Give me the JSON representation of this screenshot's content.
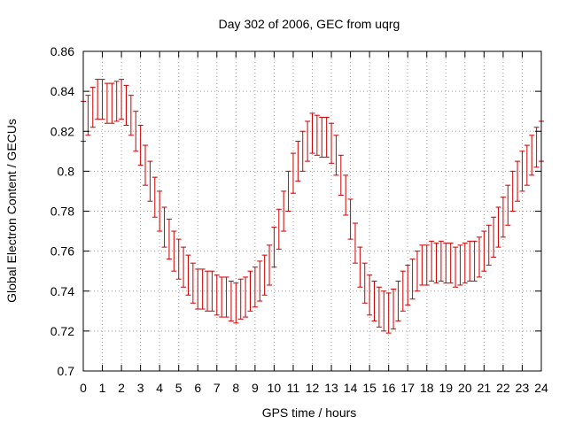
{
  "chart_data": {
    "type": "scatter",
    "title": "Day 302 of 2006, GEC from uqrg",
    "xlabel": "GPS time / hours",
    "ylabel": "Global Electron Content / GECUs",
    "xlim": [
      0,
      24
    ],
    "ylim": [
      0.7,
      0.86
    ],
    "xticks": [
      0,
      1,
      2,
      3,
      4,
      5,
      6,
      7,
      8,
      9,
      10,
      11,
      12,
      13,
      14,
      15,
      16,
      17,
      18,
      19,
      20,
      21,
      22,
      23,
      24
    ],
    "yticks": [
      0.7,
      0.72,
      0.74,
      0.76,
      0.78,
      0.8,
      0.82,
      0.84,
      0.86
    ],
    "ytick_labels": [
      "0.7",
      "0.72",
      "0.74",
      "0.76",
      "0.78",
      "0.8",
      "0.82",
      "0.84",
      "0.86"
    ],
    "grid": true,
    "error_half_width": 0.01,
    "series": [
      {
        "name": "GEC",
        "color": "#cc0000",
        "x": [
          0.0,
          0.25,
          0.5,
          0.75,
          1.0,
          1.25,
          1.5,
          1.75,
          2.0,
          2.25,
          2.5,
          2.75,
          3.0,
          3.25,
          3.5,
          3.75,
          4.0,
          4.25,
          4.5,
          4.75,
          5.0,
          5.25,
          5.5,
          5.75,
          6.0,
          6.25,
          6.5,
          6.75,
          7.0,
          7.25,
          7.5,
          7.75,
          8.0,
          8.25,
          8.5,
          8.75,
          9.0,
          9.25,
          9.5,
          9.75,
          10.0,
          10.25,
          10.5,
          10.75,
          11.0,
          11.25,
          11.5,
          11.75,
          12.0,
          12.25,
          12.5,
          12.75,
          13.0,
          13.25,
          13.5,
          13.75,
          14.0,
          14.25,
          14.5,
          14.75,
          15.0,
          15.25,
          15.5,
          15.75,
          16.0,
          16.25,
          16.5,
          16.75,
          17.0,
          17.25,
          17.5,
          17.75,
          18.0,
          18.25,
          18.5,
          18.75,
          19.0,
          19.25,
          19.5,
          19.75,
          20.0,
          20.25,
          20.5,
          20.75,
          21.0,
          21.25,
          21.5,
          21.75,
          22.0,
          22.25,
          22.5,
          22.75,
          23.0,
          23.25,
          23.5,
          23.75,
          24.0
        ],
        "y": [
          0.825,
          0.828,
          0.832,
          0.836,
          0.836,
          0.834,
          0.834,
          0.835,
          0.836,
          0.833,
          0.828,
          0.82,
          0.813,
          0.803,
          0.795,
          0.787,
          0.78,
          0.772,
          0.766,
          0.76,
          0.756,
          0.752,
          0.748,
          0.744,
          0.741,
          0.741,
          0.74,
          0.74,
          0.738,
          0.737,
          0.737,
          0.735,
          0.734,
          0.736,
          0.737,
          0.74,
          0.742,
          0.745,
          0.748,
          0.753,
          0.762,
          0.771,
          0.78,
          0.79,
          0.799,
          0.805,
          0.81,
          0.815,
          0.819,
          0.818,
          0.817,
          0.817,
          0.814,
          0.808,
          0.798,
          0.788,
          0.776,
          0.764,
          0.752,
          0.744,
          0.738,
          0.735,
          0.732,
          0.73,
          0.729,
          0.731,
          0.735,
          0.74,
          0.743,
          0.746,
          0.75,
          0.753,
          0.753,
          0.755,
          0.754,
          0.755,
          0.754,
          0.754,
          0.752,
          0.753,
          0.754,
          0.755,
          0.755,
          0.757,
          0.76,
          0.763,
          0.767,
          0.772,
          0.777,
          0.783,
          0.79,
          0.795,
          0.8,
          0.803,
          0.808,
          0.812,
          0.815
        ]
      }
    ]
  }
}
